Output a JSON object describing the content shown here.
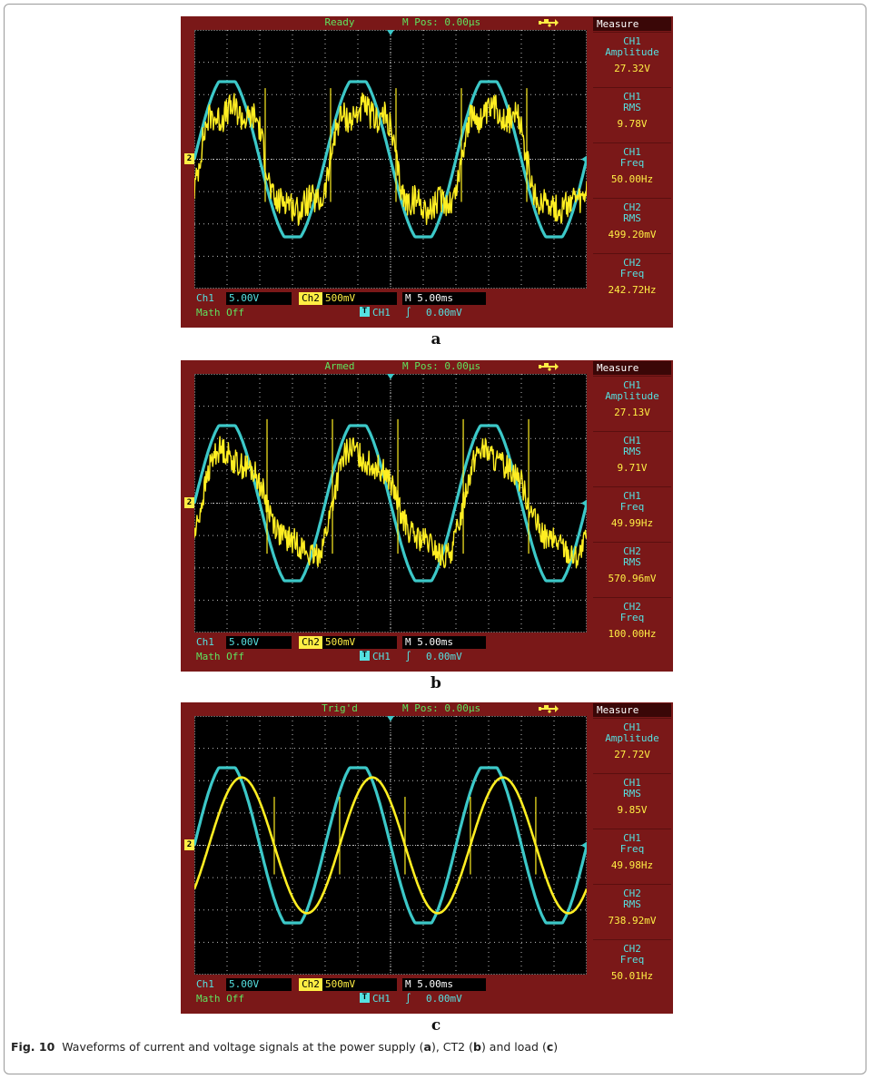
{
  "figure": {
    "caption_lead": "Fig. 10",
    "caption_text": "Waveforms of current and voltage signals at the power supply (",
    "caption_a": "a",
    "caption_mid1": "), CT2 (",
    "caption_b": "b",
    "caption_mid2": ") and load (",
    "caption_c": "c",
    "caption_end": ")"
  },
  "colors": {
    "panel_bg": "#7a1818",
    "screen_bg": "#000000",
    "ch1": "#3cc8c8",
    "ch2": "#ffee22",
    "grid": "#bdbdbd"
  },
  "icons": [
    "usb-icon",
    "trigger-marker-icon",
    "ch2-ground-marker-icon",
    "trigger-type-icon"
  ],
  "panels": [
    {
      "label": "a",
      "status": "Ready",
      "mpos": "M Pos: 0.00µs",
      "measure_title": "Measure",
      "measures": [
        {
          "label1": "CH1",
          "label2": "Amplitude",
          "value": "27.32V"
        },
        {
          "label1": "CH1",
          "label2": "RMS",
          "value": "9.78V"
        },
        {
          "label1": "CH1",
          "label2": "Freq",
          "value": "50.00Hz"
        },
        {
          "label1": "CH2",
          "label2": "RMS",
          "value": "499.20mV"
        },
        {
          "label1": "CH2",
          "label2": "Freq",
          "value": "242.72Hz"
        }
      ],
      "ch1_label": "Ch1",
      "ch1_scale": "5.00V",
      "ch2_label": "Ch2",
      "ch2_scale": "500mV",
      "timebase": "M 5.00ms",
      "math": "Math  Off",
      "trig_icon": "T",
      "trig_source": "CH1",
      "trig_slope": "∫",
      "trig_level": "0.00mV",
      "ch2_marker": "2"
    },
    {
      "label": "b",
      "status": "Armed",
      "mpos": "M Pos: 0.00µs",
      "measure_title": "Measure",
      "measures": [
        {
          "label1": "CH1",
          "label2": "Amplitude",
          "value": "27.13V"
        },
        {
          "label1": "CH1",
          "label2": "RMS",
          "value": "9.71V"
        },
        {
          "label1": "CH1",
          "label2": "Freq",
          "value": "49.99Hz"
        },
        {
          "label1": "CH2",
          "label2": "RMS",
          "value": "570.96mV"
        },
        {
          "label1": "CH2",
          "label2": "Freq",
          "value": "100.00Hz"
        }
      ],
      "ch1_label": "Ch1",
      "ch1_scale": "5.00V",
      "ch2_label": "Ch2",
      "ch2_scale": "500mV",
      "timebase": "M 5.00ms",
      "math": "Math  Off",
      "trig_icon": "T",
      "trig_source": "CH1",
      "trig_slope": "∫",
      "trig_level": "0.00mV",
      "ch2_marker": "2"
    },
    {
      "label": "c",
      "status": "Trig'd",
      "mpos": "M Pos: 0.00µs",
      "measure_title": "Measure",
      "measures": [
        {
          "label1": "CH1",
          "label2": "Amplitude",
          "value": "27.72V"
        },
        {
          "label1": "CH1",
          "label2": "RMS",
          "value": "9.85V"
        },
        {
          "label1": "CH1",
          "label2": "Freq",
          "value": "49.98Hz"
        },
        {
          "label1": "CH2",
          "label2": "RMS",
          "value": "738.92mV"
        },
        {
          "label1": "CH2",
          "label2": "Freq",
          "value": "50.01Hz"
        }
      ],
      "ch1_label": "Ch1",
      "ch1_scale": "5.00V",
      "ch2_label": "Ch2",
      "ch2_scale": "500mV",
      "timebase": "M 5.00ms",
      "math": "Math  Off",
      "trig_icon": "T",
      "trig_source": "CH1",
      "trig_slope": "∫",
      "trig_level": "0.00mV",
      "ch2_marker": "2"
    }
  ],
  "chart_data": [
    {
      "type": "line",
      "x_unit": "ms",
      "x_range": [
        0,
        60
      ],
      "x_divs": 12,
      "ms_per_div": 5,
      "y_unit": "div",
      "y_range": [
        -4,
        4
      ],
      "y_divs": 8,
      "grid": true,
      "series": [
        {
          "name": "Ch1",
          "shape": "clipped-sine",
          "freq_hz": 50.0,
          "amplitude_div": 2.6,
          "clip_div": 2.4,
          "phase_deg": 0
        },
        {
          "name": "Ch2",
          "shape": "distorted-sine",
          "freq_hz": 50.0,
          "amplitude_div": 1.7,
          "phase_deg": -15,
          "harmonics": [
            {
              "n": 3,
              "amp": 0.35
            },
            {
              "n": 5,
              "amp": 0.25
            }
          ],
          "noise_div": 0.45,
          "spikes_div": 2.2
        }
      ]
    },
    {
      "type": "line",
      "x_unit": "ms",
      "x_range": [
        0,
        60
      ],
      "x_divs": 12,
      "ms_per_div": 5,
      "y_unit": "div",
      "y_range": [
        -4,
        4
      ],
      "y_divs": 8,
      "grid": true,
      "series": [
        {
          "name": "Ch1",
          "shape": "clipped-sine",
          "freq_hz": 49.99,
          "amplitude_div": 2.6,
          "clip_div": 2.4,
          "phase_deg": 0
        },
        {
          "name": "Ch2",
          "shape": "distorted-sine",
          "freq_hz": 49.99,
          "amplitude_div": 1.6,
          "phase_deg": -20,
          "harmonics": [
            {
              "n": 2,
              "amp": 0.3
            },
            {
              "n": 3,
              "amp": 0.3
            }
          ],
          "noise_div": 0.4,
          "spikes_div": 2.6
        }
      ]
    },
    {
      "type": "line",
      "x_unit": "ms",
      "x_range": [
        0,
        60
      ],
      "x_divs": 12,
      "ms_per_div": 5,
      "y_unit": "div",
      "y_range": [
        -4,
        4
      ],
      "y_divs": 8,
      "grid": true,
      "series": [
        {
          "name": "Ch1",
          "shape": "clipped-sine",
          "freq_hz": 49.98,
          "amplitude_div": 2.6,
          "clip_div": 2.4,
          "phase_deg": 0
        },
        {
          "name": "Ch2",
          "shape": "sine",
          "freq_hz": 50.01,
          "amplitude_div": 2.1,
          "phase_deg": -40,
          "harmonics": [],
          "noise_div": 0.0,
          "spikes_div": 1.5
        }
      ]
    }
  ]
}
